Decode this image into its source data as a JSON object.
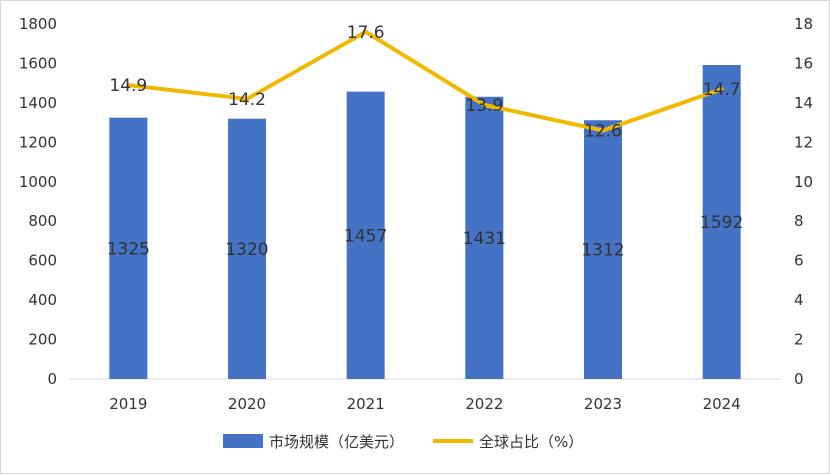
{
  "chart_data": {
    "type": "bar",
    "categories": [
      "2019",
      "2020",
      "2021",
      "2022",
      "2023",
      "2024"
    ],
    "series": [
      {
        "name": "市场规模（亿美元）",
        "type": "bar",
        "axis": "left",
        "values": [
          1325,
          1320,
          1457,
          1431,
          1312,
          1592
        ],
        "color": "#4472C4",
        "labels": [
          "1325",
          "1320",
          "1457",
          "1431",
          "1312",
          "1592"
        ]
      },
      {
        "name": "全球占比（%）",
        "type": "line",
        "axis": "right",
        "values": [
          14.9,
          14.2,
          17.6,
          13.9,
          12.6,
          14.7
        ],
        "color": "#F2B800",
        "labels": [
          "14.9",
          "14.2",
          "17.6",
          "13.9",
          "12.6",
          "14.7"
        ]
      }
    ],
    "left_axis": {
      "min": 0,
      "max": 1800,
      "step": 200,
      "ticks": [
        "0",
        "200",
        "400",
        "600",
        "800",
        "1000",
        "1200",
        "1400",
        "1600",
        "1800"
      ]
    },
    "right_axis": {
      "min": 0,
      "max": 18,
      "step": 2,
      "ticks": [
        "0",
        "2",
        "4",
        "6",
        "8",
        "10",
        "12",
        "14",
        "16",
        "18"
      ]
    },
    "grid": false,
    "legend": "bottom",
    "title": "",
    "xlabel": "",
    "ylabel": ""
  }
}
